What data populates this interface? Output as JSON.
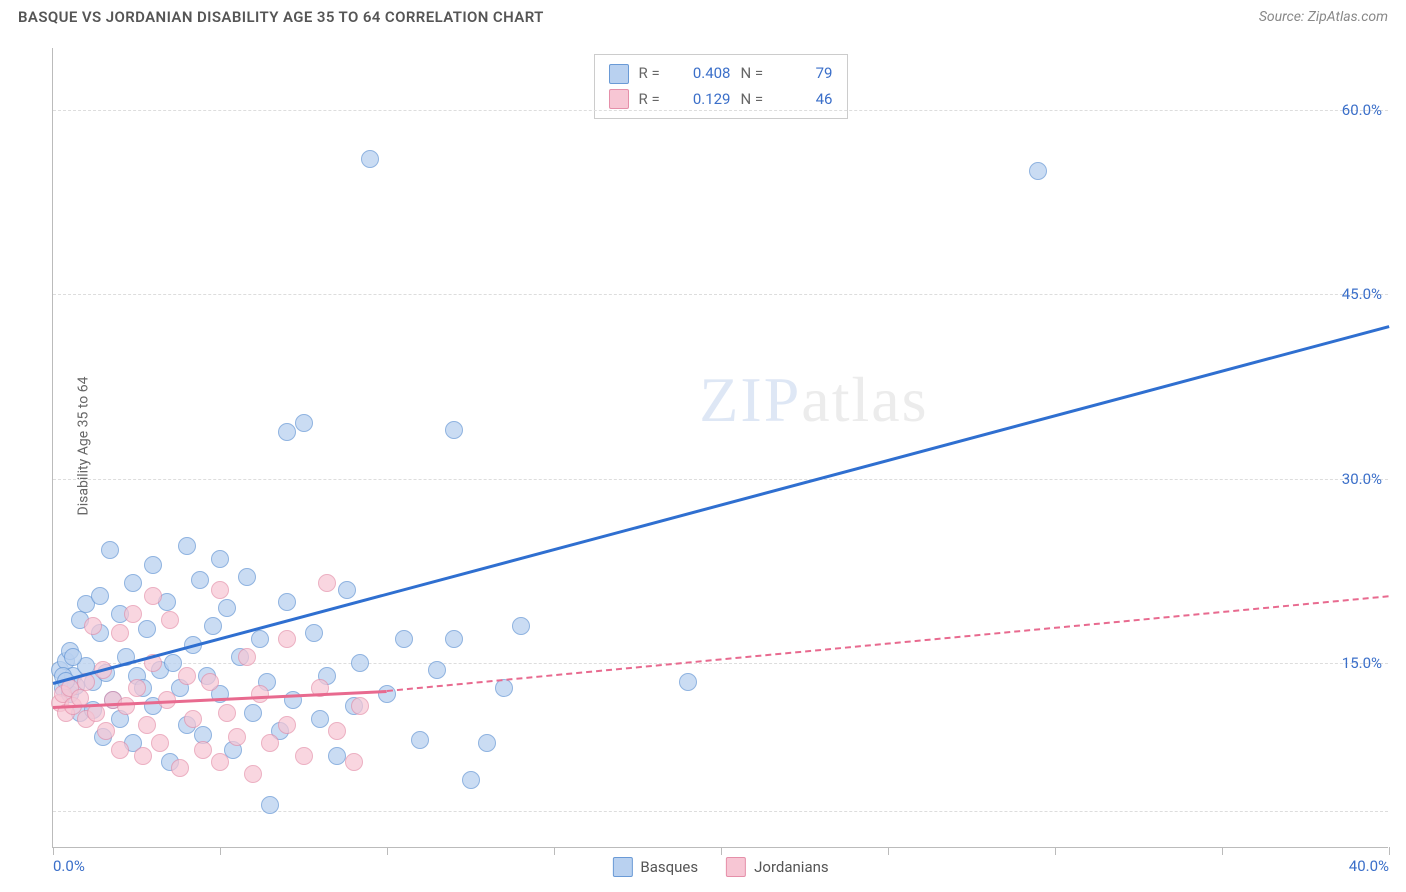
{
  "header": {
    "title": "BASQUE VS JORDANIAN DISABILITY AGE 35 TO 64 CORRELATION CHART",
    "source": "Source: ZipAtlas.com"
  },
  "watermark": {
    "part1": "ZIP",
    "part2": "atlas"
  },
  "chart": {
    "type": "scatter",
    "xlim": [
      0,
      40
    ],
    "ylim": [
      0,
      65
    ],
    "x_ticks": [
      0,
      5,
      10,
      15,
      20,
      25,
      30,
      35,
      40
    ],
    "x_tick_labels_shown": {
      "0": "0.0%",
      "40": "40.0%"
    },
    "y_ticks": [
      15,
      30,
      45,
      60
    ],
    "y_tick_labels": [
      "15.0%",
      "30.0%",
      "45.0%",
      "60.0%"
    ],
    "y_gridlines": [
      3,
      15,
      30,
      45,
      60
    ],
    "yaxis_title": "Disability Age 35 to 64",
    "background_color": "#ffffff",
    "grid_color": "#dddddd",
    "axis_color": "#bbbbbb",
    "tick_label_color": "#3b6fc9",
    "tick_fontsize": 15,
    "point_radius": 9,
    "series": [
      {
        "name": "Basques",
        "marker_fill": "#b9d1f0",
        "marker_stroke": "#6a9ad6",
        "marker_opacity": 0.75,
        "trend": {
          "x1": 0,
          "y1": 13.5,
          "x2": 40,
          "y2": 42.5,
          "color": "#2f6fd0",
          "width": 3,
          "style": "solid"
        },
        "r": "0.408",
        "n": "79",
        "points": [
          [
            0.2,
            14.5
          ],
          [
            0.3,
            13.0
          ],
          [
            0.4,
            15.2
          ],
          [
            0.5,
            12.5
          ],
          [
            0.5,
            16.0
          ],
          [
            0.6,
            14.0
          ],
          [
            0.7,
            13.2
          ],
          [
            0.8,
            18.5
          ],
          [
            0.8,
            11.0
          ],
          [
            1.0,
            14.8
          ],
          [
            1.0,
            19.8
          ],
          [
            1.2,
            13.5
          ],
          [
            1.4,
            17.5
          ],
          [
            1.4,
            20.5
          ],
          [
            1.5,
            9.0
          ],
          [
            1.6,
            14.2
          ],
          [
            1.7,
            24.2
          ],
          [
            1.8,
            12.0
          ],
          [
            2.0,
            19.0
          ],
          [
            2.0,
            10.5
          ],
          [
            2.2,
            15.5
          ],
          [
            2.4,
            21.5
          ],
          [
            2.4,
            8.5
          ],
          [
            2.5,
            14.0
          ],
          [
            2.7,
            13.0
          ],
          [
            2.8,
            17.8
          ],
          [
            3.0,
            23.0
          ],
          [
            3.0,
            11.5
          ],
          [
            3.2,
            14.5
          ],
          [
            3.4,
            20.0
          ],
          [
            3.5,
            7.0
          ],
          [
            3.6,
            15.0
          ],
          [
            3.8,
            13.0
          ],
          [
            4.0,
            24.5
          ],
          [
            4.0,
            10.0
          ],
          [
            4.2,
            16.5
          ],
          [
            4.4,
            21.8
          ],
          [
            4.5,
            9.2
          ],
          [
            4.6,
            14.0
          ],
          [
            4.8,
            18.0
          ],
          [
            5.0,
            23.5
          ],
          [
            5.0,
            12.5
          ],
          [
            5.2,
            19.5
          ],
          [
            5.4,
            8.0
          ],
          [
            5.6,
            15.5
          ],
          [
            5.8,
            22.0
          ],
          [
            6.0,
            11.0
          ],
          [
            6.2,
            17.0
          ],
          [
            6.4,
            13.5
          ],
          [
            6.5,
            3.5
          ],
          [
            6.8,
            9.5
          ],
          [
            7.0,
            20.0
          ],
          [
            7.0,
            33.8
          ],
          [
            7.2,
            12.0
          ],
          [
            7.5,
            34.5
          ],
          [
            7.8,
            17.5
          ],
          [
            8.0,
            10.5
          ],
          [
            8.2,
            14.0
          ],
          [
            8.5,
            7.5
          ],
          [
            8.8,
            21.0
          ],
          [
            9.0,
            11.5
          ],
          [
            9.2,
            15.0
          ],
          [
            9.5,
            56.0
          ],
          [
            10.0,
            12.5
          ],
          [
            10.5,
            17.0
          ],
          [
            11.0,
            8.8
          ],
          [
            11.5,
            14.5
          ],
          [
            12.0,
            34.0
          ],
          [
            12.0,
            17.0
          ],
          [
            12.5,
            5.5
          ],
          [
            13.0,
            8.5
          ],
          [
            13.5,
            13.0
          ],
          [
            14.0,
            18.0
          ],
          [
            19.0,
            13.5
          ],
          [
            29.5,
            55.0
          ],
          [
            0.3,
            14.0
          ],
          [
            0.6,
            15.5
          ],
          [
            1.2,
            11.2
          ],
          [
            0.4,
            13.6
          ]
        ]
      },
      {
        "name": "Jordanians",
        "marker_fill": "#f7c6d4",
        "marker_stroke": "#e58fa9",
        "marker_opacity": 0.7,
        "trend_solid": {
          "x1": 0,
          "y1": 11.5,
          "x2": 10,
          "y2": 12.8,
          "color": "#e86a8f",
          "width": 3,
          "style": "solid"
        },
        "trend_dash": {
          "x1": 10,
          "y1": 12.8,
          "x2": 40,
          "y2": 20.5,
          "color": "#e86a8f",
          "width": 2,
          "style": "dashed"
        },
        "r": "0.129",
        "n": "46",
        "points": [
          [
            0.2,
            11.8
          ],
          [
            0.3,
            12.5
          ],
          [
            0.4,
            11.0
          ],
          [
            0.5,
            13.0
          ],
          [
            0.6,
            11.5
          ],
          [
            0.8,
            12.2
          ],
          [
            1.0,
            10.5
          ],
          [
            1.0,
            13.5
          ],
          [
            1.2,
            18.0
          ],
          [
            1.3,
            11.0
          ],
          [
            1.5,
            14.5
          ],
          [
            1.6,
            9.5
          ],
          [
            1.8,
            12.0
          ],
          [
            2.0,
            17.5
          ],
          [
            2.0,
            8.0
          ],
          [
            2.2,
            11.5
          ],
          [
            2.4,
            19.0
          ],
          [
            2.5,
            13.0
          ],
          [
            2.7,
            7.5
          ],
          [
            2.8,
            10.0
          ],
          [
            3.0,
            15.0
          ],
          [
            3.0,
            20.5
          ],
          [
            3.2,
            8.5
          ],
          [
            3.4,
            12.0
          ],
          [
            3.5,
            18.5
          ],
          [
            3.8,
            6.5
          ],
          [
            4.0,
            14.0
          ],
          [
            4.2,
            10.5
          ],
          [
            4.5,
            8.0
          ],
          [
            4.7,
            13.5
          ],
          [
            5.0,
            21.0
          ],
          [
            5.0,
            7.0
          ],
          [
            5.2,
            11.0
          ],
          [
            5.5,
            9.0
          ],
          [
            5.8,
            15.5
          ],
          [
            6.0,
            6.0
          ],
          [
            6.2,
            12.5
          ],
          [
            6.5,
            8.5
          ],
          [
            7.0,
            17.0
          ],
          [
            7.0,
            10.0
          ],
          [
            7.5,
            7.5
          ],
          [
            8.0,
            13.0
          ],
          [
            8.2,
            21.5
          ],
          [
            8.5,
            9.5
          ],
          [
            9.0,
            7.0
          ],
          [
            9.2,
            11.5
          ]
        ]
      }
    ],
    "legend_top": {
      "r_label": "R =",
      "n_label": "N =",
      "value_color": "#3b6fc9"
    },
    "legend_bottom": {
      "items": [
        "Basques",
        "Jordanians"
      ]
    }
  }
}
